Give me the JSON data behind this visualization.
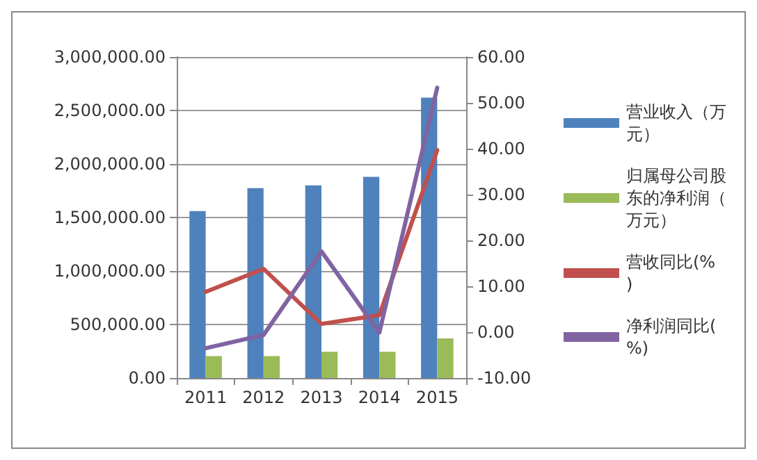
{
  "chart_data": {
    "type": "bar",
    "categories": [
      "2011",
      "2012",
      "2013",
      "2014",
      "2015"
    ],
    "series": [
      {
        "name": "营业收入（万元）",
        "color": "#4f81bd",
        "values": [
          1560000,
          1775000,
          1800000,
          1880000,
          2620000
        ]
      },
      {
        "name": "归属母公司股东的净利润（万元）",
        "color": "#9bbb59",
        "values": [
          205000,
          205000,
          245000,
          245000,
          370000
        ]
      },
      {
        "name": "营收同比(%)",
        "type": "line",
        "axis": "y2",
        "color": "#c0504d",
        "values": [
          8.8,
          13.8,
          1.8,
          3.7,
          39.7
        ]
      },
      {
        "name": "净利润同比(%)",
        "type": "line",
        "axis": "y2",
        "color": "#8064a2",
        "values": [
          -3.5,
          -0.6,
          17.6,
          -0.1,
          53.3
        ]
      }
    ],
    "ylim": [
      0,
      3000000
    ],
    "yticks": [
      {
        "value": 0,
        "label": "0.00"
      },
      {
        "value": 500000,
        "label": "500,000.00"
      },
      {
        "value": 1000000,
        "label": "1,000,000.00"
      },
      {
        "value": 1500000,
        "label": "1,500,000.00"
      },
      {
        "value": 2000000,
        "label": "2,000,000.00"
      },
      {
        "value": 2500000,
        "label": "2,500,000.00"
      },
      {
        "value": 3000000,
        "label": "3,000,000.00"
      }
    ],
    "y2lim": [
      -10,
      60
    ],
    "y2ticks": [
      {
        "value": -10,
        "label": "-10.00"
      },
      {
        "value": 0,
        "label": "0.00"
      },
      {
        "value": 10,
        "label": "10.00"
      },
      {
        "value": 20,
        "label": "20.00"
      },
      {
        "value": 30,
        "label": "30.00"
      },
      {
        "value": 40,
        "label": "40.00"
      },
      {
        "value": 50,
        "label": "50.00"
      },
      {
        "value": 60,
        "label": "60.00"
      }
    ],
    "grid": "y",
    "legend": "right",
    "marker": "none",
    "line_style": "solid"
  }
}
